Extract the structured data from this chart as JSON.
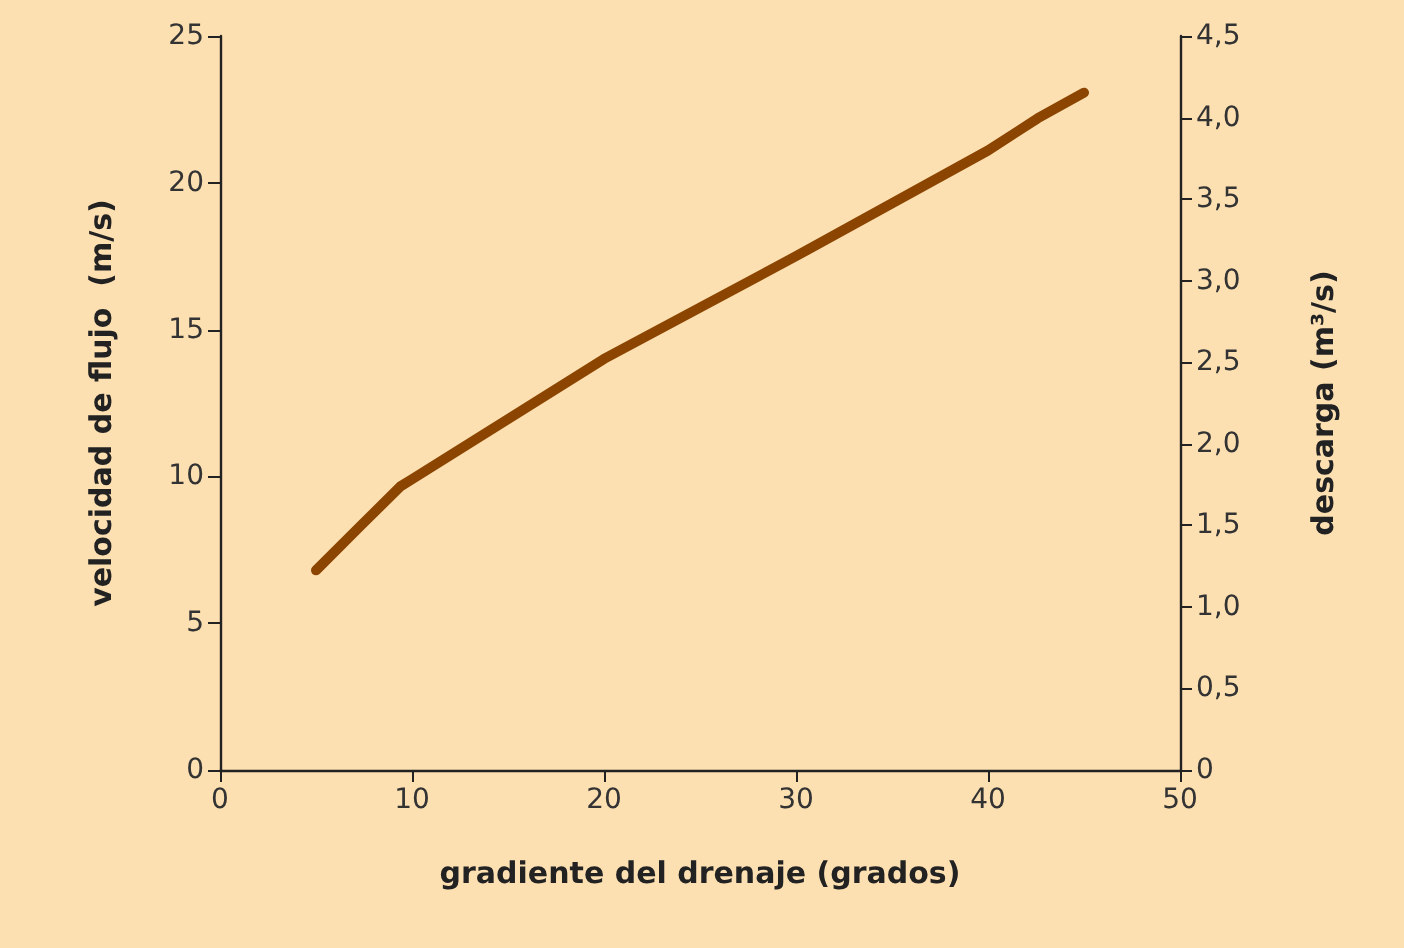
{
  "chart_data": {
    "type": "line",
    "xlabel": "gradiente del drenaje (grados)",
    "ylabel": "velocidad de flujo  (m/s)",
    "y2label": "descarga (m³/s)",
    "series": [
      {
        "color": "#8b4500",
        "x": [
          5,
          7.3,
          9.4,
          10,
          20,
          30,
          40,
          42.6,
          45
        ],
        "values": [
          6.8,
          8.3,
          9.66,
          9.9,
          14.0,
          17.5,
          21.1,
          22.2,
          23.07
        ]
      }
    ],
    "xlim": [
      0,
      50
    ],
    "xticks": [
      0,
      10,
      20,
      30,
      40,
      50
    ],
    "ylim": [
      0,
      25
    ],
    "yticks": [
      0,
      5,
      10,
      15,
      20,
      25
    ],
    "y2lim": [
      0,
      4.5
    ],
    "y2ticks": [
      0,
      {
        "value": 0.5,
        "label": "0,5"
      },
      {
        "value": 1,
        "label": "1,0"
      },
      {
        "value": 1.5,
        "label": "1,5"
      },
      {
        "value": 2,
        "label": "2,0"
      },
      {
        "value": 2.5,
        "label": "2,5"
      },
      {
        "value": 3,
        "label": "3,0"
      },
      {
        "value": 3.5,
        "label": "3,5"
      },
      {
        "value": 4,
        "label": "4,0"
      },
      {
        "value": 4.5,
        "label": "4,5"
      }
    ],
    "grid": false,
    "marker": "none",
    "line_style": "solid"
  }
}
